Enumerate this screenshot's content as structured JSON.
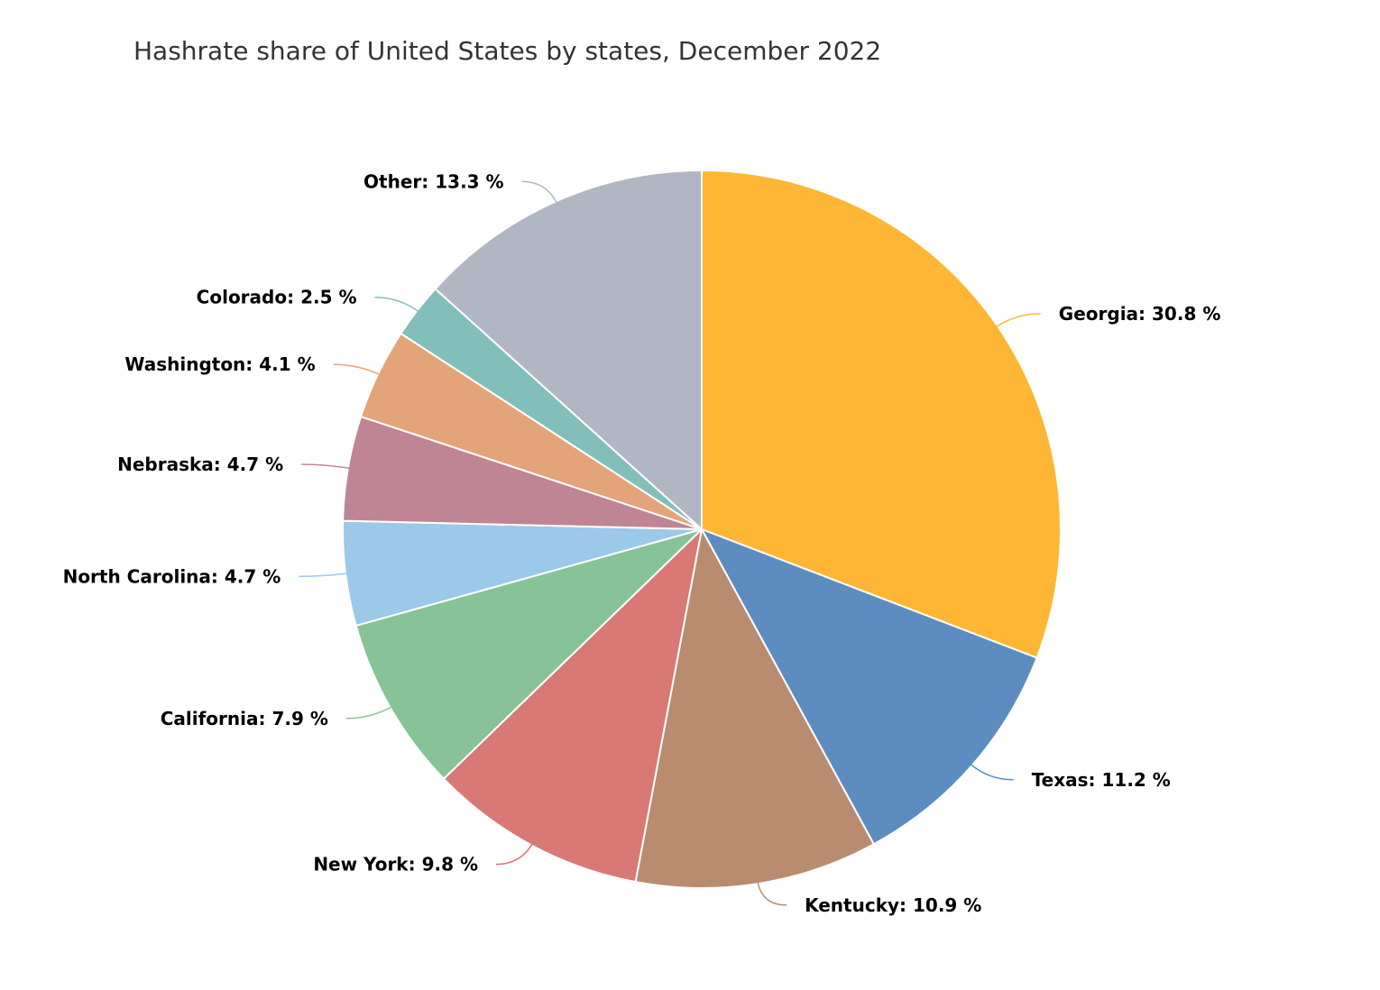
{
  "chart_data": {
    "type": "pie",
    "title": "Hashrate share of United States by states, December 2022",
    "unit": "%",
    "slices": [
      {
        "label": "Georgia",
        "value": 30.8,
        "color": "#ffb634"
      },
      {
        "label": "Texas",
        "value": 11.2,
        "color": "#5d8cc0"
      },
      {
        "label": "Kentucky",
        "value": 10.9,
        "color": "#b98c70"
      },
      {
        "label": "New York",
        "value": 9.8,
        "color": "#d97975"
      },
      {
        "label": "California",
        "value": 7.9,
        "color": "#87c396"
      },
      {
        "label": "North Carolina",
        "value": 4.7,
        "color": "#9cc8e9"
      },
      {
        "label": "Nebraska",
        "value": 4.7,
        "color": "#bf8595"
      },
      {
        "label": "Washington",
        "value": 4.1,
        "color": "#e4a479"
      },
      {
        "label": "Colorado",
        "value": 2.5,
        "color": "#82bfba"
      },
      {
        "label": "Other",
        "value": 13.3,
        "color": "#b1b6c3"
      }
    ],
    "label_format": "{label}: {value} %"
  }
}
